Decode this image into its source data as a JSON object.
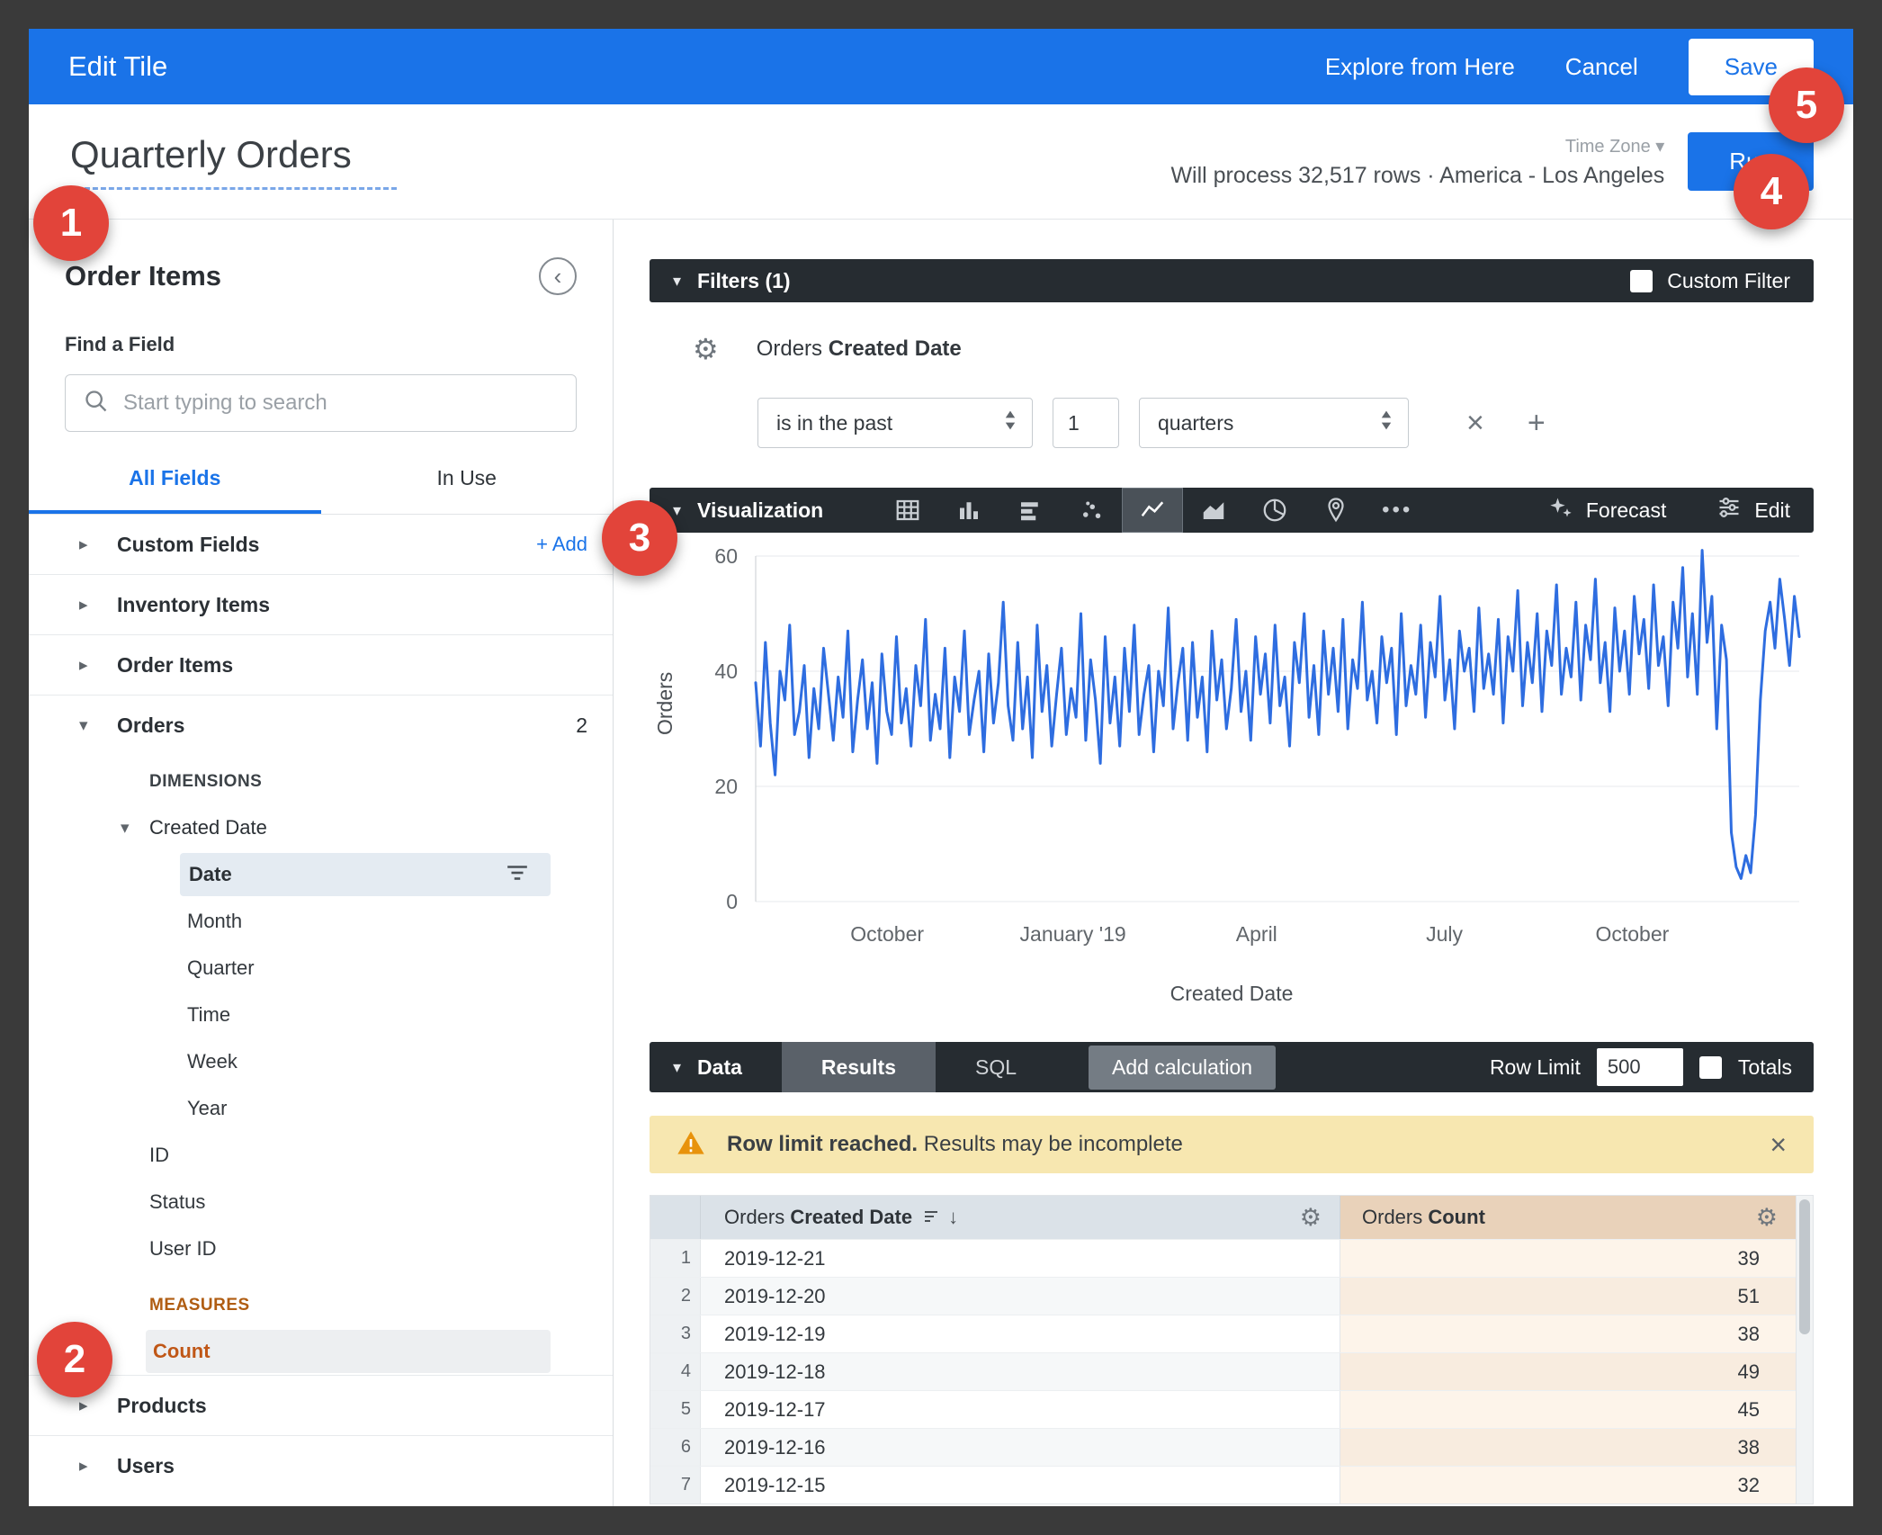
{
  "topbar": {
    "title": "Edit Tile",
    "explore": "Explore from Here",
    "cancel": "Cancel",
    "save": "Save"
  },
  "header": {
    "title": "Quarterly Orders",
    "timezone_label": "Time Zone",
    "process_text": "Will process 32,517 rows · America - Los Angeles",
    "run": "Run"
  },
  "badges": {
    "b1": "1",
    "b2": "2",
    "b3": "3",
    "b4": "4",
    "b5": "5"
  },
  "sidebar": {
    "title": "Order Items",
    "find_label": "Find a Field",
    "search_placeholder": "Start typing to search",
    "tabs": {
      "all": "All Fields",
      "in_use": "In Use"
    },
    "groups": [
      {
        "label": "Custom Fields",
        "action": "+ Add"
      },
      {
        "label": "Inventory Items"
      },
      {
        "label": "Order Items"
      }
    ],
    "orders": {
      "label": "Orders",
      "count": "2",
      "dimensions_label": "DIMENSIONS",
      "created_date": "Created Date",
      "date_fields": [
        "Date",
        "Month",
        "Quarter",
        "Time",
        "Week",
        "Year"
      ],
      "other_fields": [
        "ID",
        "Status",
        "User ID"
      ],
      "measures_label": "MEASURES",
      "measure": "Count"
    },
    "bottom_groups": [
      "Products",
      "Users"
    ]
  },
  "filters": {
    "title": "Filters (1)",
    "custom_filter": "Custom Filter",
    "field_prefix": "Orders ",
    "field_bold": "Created Date",
    "op": "is in the past",
    "value": "1",
    "unit": "quarters"
  },
  "viz": {
    "title": "Visualization",
    "icons": [
      "table",
      "column",
      "bar",
      "scatter",
      "line",
      "area",
      "pie",
      "map",
      "more"
    ],
    "selected": "line",
    "forecast": "Forecast",
    "edit": "Edit"
  },
  "chart_data": {
    "type": "line",
    "title": "",
    "xlabel": "Created Date",
    "ylabel": "Orders",
    "ylim": [
      0,
      60
    ],
    "yticks": [
      0,
      20,
      40,
      60
    ],
    "xticks": [
      {
        "label": "October",
        "pos": 0.126
      },
      {
        "label": "January '19",
        "pos": 0.304
      },
      {
        "label": "April",
        "pos": 0.48
      },
      {
        "label": "July",
        "pos": 0.66
      },
      {
        "label": "October",
        "pos": 0.84
      }
    ],
    "legend": "off",
    "grid": "horizontal",
    "line_color": "#2e6de0",
    "values": [
      38,
      27,
      45,
      31,
      22,
      40,
      35,
      48,
      29,
      33,
      41,
      25,
      37,
      30,
      44,
      36,
      28,
      39,
      32,
      47,
      26,
      35,
      42,
      30,
      38,
      24,
      43,
      33,
      29,
      46,
      31,
      37,
      27,
      41,
      34,
      49,
      28,
      36,
      30,
      44,
      25,
      39,
      33,
      47,
      29,
      35,
      40,
      26,
      43,
      31,
      38,
      52,
      34,
      28,
      45,
      30,
      39,
      25,
      48,
      33,
      41,
      27,
      36,
      44,
      29,
      37,
      32,
      50,
      28,
      42,
      35,
      24,
      46,
      31,
      39,
      27,
      44,
      33,
      48,
      29,
      36,
      41,
      26,
      40,
      34,
      51,
      30,
      38,
      44,
      28,
      45,
      32,
      39,
      26,
      47,
      35,
      42,
      30,
      37,
      49,
      33,
      40,
      28,
      46,
      36,
      43,
      31,
      48,
      34,
      39,
      27,
      45,
      38,
      50,
      32,
      41,
      29,
      47,
      36,
      44,
      33,
      49,
      30,
      42,
      37,
      52,
      35,
      40,
      31,
      46,
      38,
      44,
      29,
      50,
      34,
      41,
      36,
      48,
      32,
      45,
      39,
      53,
      35,
      42,
      30,
      47,
      40,
      44,
      33,
      51,
      37,
      43,
      36,
      49,
      31,
      46,
      40,
      54,
      34,
      45,
      38,
      50,
      33,
      47,
      41,
      55,
      36,
      44,
      39,
      52,
      35,
      48,
      42,
      56,
      38,
      45,
      33,
      51,
      40,
      47,
      36,
      53,
      43,
      49,
      37,
      55,
      41,
      46,
      34,
      52,
      44,
      58,
      39,
      50,
      36,
      61,
      45,
      53,
      30,
      48,
      42,
      12,
      6,
      4,
      8,
      5,
      15,
      35,
      47,
      52,
      44,
      56,
      49,
      41,
      53,
      46
    ]
  },
  "data_section": {
    "title": "Data",
    "tab_results": "Results",
    "tab_sql": "SQL",
    "add_calc": "Add calculation",
    "row_limit_label": "Row Limit",
    "row_limit_value": "500",
    "totals": "Totals",
    "warning_bold": "Row limit reached.",
    "warning_rest": " Results may be incomplete"
  },
  "table": {
    "col_date_prefix": "Orders ",
    "col_date_bold": "Created Date",
    "col_count_prefix": "Orders ",
    "col_count_bold": "Count",
    "rows": [
      {
        "n": "1",
        "date": "2019-12-21",
        "count": "39"
      },
      {
        "n": "2",
        "date": "2019-12-20",
        "count": "51"
      },
      {
        "n": "3",
        "date": "2019-12-19",
        "count": "38"
      },
      {
        "n": "4",
        "date": "2019-12-18",
        "count": "49"
      },
      {
        "n": "5",
        "date": "2019-12-17",
        "count": "45"
      },
      {
        "n": "6",
        "date": "2019-12-16",
        "count": "38"
      },
      {
        "n": "7",
        "date": "2019-12-15",
        "count": "32"
      }
    ]
  }
}
